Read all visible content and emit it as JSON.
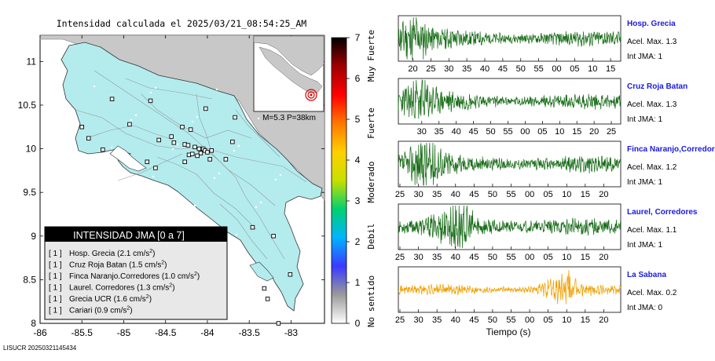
{
  "map": {
    "title": "Intensidad calculada el 2025/03/21_08:54:25_AM",
    "footer_id": "LISUCR 20250321145434",
    "chart_data": {
      "type": "scatter",
      "xlim": [
        -86,
        -82.6
      ],
      "ylim": [
        8,
        11.3
      ],
      "xticks": [
        -86,
        -85.5,
        -85,
        -84.5,
        -84,
        -83.5,
        -83
      ],
      "yticks": [
        8,
        8.5,
        9,
        9.5,
        10,
        10.5,
        11
      ],
      "xtick_labels": [
        "-86",
        "-85.5",
        "-85",
        "-84.5",
        "-84",
        "-83.5",
        "-83"
      ],
      "ytick_labels": [
        "8",
        "8.5",
        "9",
        "9.5",
        "10",
        "10.5",
        "11"
      ],
      "stations": [
        {
          "lon": -85.14,
          "lat": 10.57
        },
        {
          "lon": -84.68,
          "lat": 10.55
        },
        {
          "lon": -84.02,
          "lat": 10.46
        },
        {
          "lon": -83.67,
          "lat": 10.36
        },
        {
          "lon": -84.3,
          "lat": 10.25
        },
        {
          "lon": -84.2,
          "lat": 10.22
        },
        {
          "lon": -84.58,
          "lat": 10.1
        },
        {
          "lon": -84.4,
          "lat": 10.07
        },
        {
          "lon": -84.27,
          "lat": 10.05
        },
        {
          "lon": -84.23,
          "lat": 10.04
        },
        {
          "lon": -84.15,
          "lat": 10.02
        },
        {
          "lon": -84.1,
          "lat": 10.0
        },
        {
          "lon": -84.05,
          "lat": 10.0
        },
        {
          "lon": -84.03,
          "lat": 9.98
        },
        {
          "lon": -83.95,
          "lat": 9.98
        },
        {
          "lon": -84.0,
          "lat": 9.96
        },
        {
          "lon": -84.08,
          "lat": 9.95
        },
        {
          "lon": -84.22,
          "lat": 9.93
        },
        {
          "lon": -84.18,
          "lat": 9.94
        },
        {
          "lon": -84.12,
          "lat": 9.92
        },
        {
          "lon": -83.78,
          "lat": 9.88
        },
        {
          "lon": -83.97,
          "lat": 9.88
        },
        {
          "lon": -84.27,
          "lat": 9.85
        },
        {
          "lon": -84.62,
          "lat": 9.78
        },
        {
          "lon": -85.25,
          "lat": 9.99
        },
        {
          "lon": -85.42,
          "lat": 10.12
        },
        {
          "lon": -85.5,
          "lat": 10.25
        },
        {
          "lon": -84.93,
          "lat": 10.28
        },
        {
          "lon": -84.72,
          "lat": 9.85
        },
        {
          "lon": -83.46,
          "lat": 9.1
        },
        {
          "lon": -83.21,
          "lat": 9.0
        },
        {
          "lon": -83.01,
          "lat": 8.56
        },
        {
          "lon": -83.32,
          "lat": 8.4
        },
        {
          "lon": -83.28,
          "lat": 8.28
        },
        {
          "lon": -83.15,
          "lat": 8.0
        },
        {
          "lon": -83.7,
          "lat": 10.08
        },
        {
          "lon": -84.43,
          "lat": 10.14
        }
      ],
      "epicenter": {
        "lon": -82.88,
        "lat": 8.6
      }
    },
    "inset_label": "M=5.3 P=38km",
    "legend": {
      "title": "INTENSIDAD JMA [0 a 7]",
      "unit_base": "cm/s",
      "unit_sup": "2",
      "rows": [
        {
          "int": "[ 1 ]",
          "label": "Hosp. Grecia (2.1 cm/s",
          "sup": "2",
          "close": ")"
        },
        {
          "int": "[ 1 ]",
          "label": "Cruz Roja Batan (1.5 cm/s",
          "sup": "2",
          "close": ")"
        },
        {
          "int": "[ 1 ]",
          "label": "Finca Naranjo.Corredores (1.0 cm/s",
          "sup": "2",
          "close": ")"
        },
        {
          "int": "[ 1 ]",
          "label": "Laurel. Corredores (1.3 cm/s",
          "sup": "2",
          "close": ")"
        },
        {
          "int": "[ 1 ]",
          "label": "Grecia UCR (1.6 cm/s",
          "sup": "2",
          "close": ")"
        },
        {
          "int": "[ 1 ]",
          "label": "Cariari (0.9 cm/s",
          "sup": "2",
          "close": ")"
        }
      ]
    }
  },
  "colorbar": {
    "ticks": [
      "0",
      "1",
      "2",
      "3",
      "4",
      "5",
      "6",
      "7"
    ],
    "categories": [
      "No sentido",
      "Debil",
      "Moderado",
      "Fuerte",
      "Muy Fuerte"
    ],
    "stops": [
      "#ffffff",
      "#9a9a9a",
      "#3a3aff",
      "#00b4ff",
      "#00d070",
      "#c8e000",
      "#ffd000",
      "#ff7800",
      "#ff0000",
      "#a00000",
      "#000000"
    ]
  },
  "waveforms": {
    "xlabel": "Tiempo (s)",
    "panels": [
      {
        "station": "Hosp. Grecia",
        "acel": "Acel. Max. 1.3",
        "int": "Int JMA: 1",
        "color": "#1a6e1a",
        "ticks": [
          "20",
          "25",
          "30",
          "35",
          "40",
          "45",
          "50",
          "55",
          "00",
          "05",
          "10",
          "15"
        ],
        "offset": 0.03,
        "seed": 11,
        "burst": 0.05,
        "amp": 0.9
      },
      {
        "station": "Cruz Roja Batan",
        "acel": "Acel. Max. 1.3",
        "int": "Int JMA: 1",
        "color": "#1a6e1a",
        "ticks": [
          "30",
          "35",
          "40",
          "45",
          "50",
          "55",
          "00",
          "05",
          "10",
          "15",
          "20",
          "25"
        ],
        "offset": 0.07,
        "seed": 23,
        "burst": 0.08,
        "amp": 0.85
      },
      {
        "station": "Finca Naranjo,Corredores",
        "acel": "Acel. Max. 1.2",
        "int": "Int JMA: 1",
        "color": "#1a6e1a",
        "ticks": [
          "25",
          "30",
          "35",
          "40",
          "45",
          "50",
          "55",
          "00",
          "05",
          "10",
          "15",
          "20"
        ],
        "offset": 0.0,
        "seed": 37,
        "burst": 0.11,
        "amp": 0.95
      },
      {
        "station": "Laurel, Corredores",
        "acel": "Acel. Max. 1.1",
        "int": "Int JMA: 1",
        "color": "#1a6e1a",
        "ticks": [
          "25",
          "30",
          "35",
          "40",
          "45",
          "50",
          "55",
          "00",
          "05",
          "10",
          "15",
          "20"
        ],
        "offset": 0.0,
        "seed": 53,
        "burst": 0.25,
        "amp": 0.95
      },
      {
        "station": "La Sabana",
        "acel": "Acel. Max. 0.2",
        "int": "Int JMA: 0",
        "color": "#f0a000",
        "ticks": [
          "25",
          "30",
          "35",
          "40",
          "45",
          "50",
          "55",
          "00",
          "05",
          "10",
          "15",
          "20"
        ],
        "offset": 0.0,
        "seed": 71,
        "burst": 0.73,
        "amp": 0.55
      }
    ]
  }
}
